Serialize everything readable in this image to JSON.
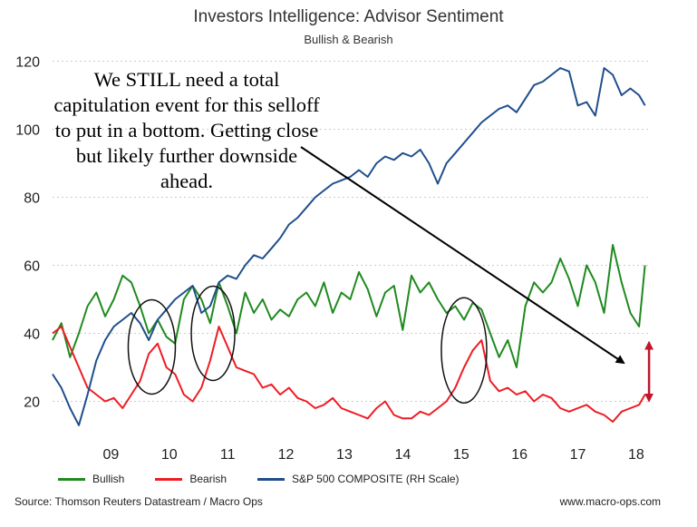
{
  "title": "Investors Intelligence: Advisor Sentiment",
  "subtitle": "Bullish & Bearish",
  "annotation": "We STILL need a total capitulation event for this selloff to put in a bottom. Getting close but likely further downside ahead.",
  "source": "Source: Thomson Reuters Datastream / Macro Ops",
  "website": "www.macro-ops.com",
  "colors": {
    "bullish": "#1f8a1f",
    "bearish": "#ee1c24",
    "sp500": "#1f4e8c",
    "arrow_red": "#c0152a"
  },
  "chart_data": {
    "type": "line",
    "title": "Investors Intelligence: Advisor Sentiment",
    "subtitle": "Bullish & Bearish",
    "xlabel": "",
    "ylabel": "",
    "xlim": [
      2008.5,
      2018.75
    ],
    "ylim": [
      10,
      122
    ],
    "yticks": [
      20,
      40,
      60,
      80,
      100,
      120
    ],
    "xticks": [
      {
        "value": 2009.5,
        "label": "09"
      },
      {
        "value": 2010.5,
        "label": "10"
      },
      {
        "value": 2011.5,
        "label": "11"
      },
      {
        "value": 2012.5,
        "label": "12"
      },
      {
        "value": 2013.5,
        "label": "13"
      },
      {
        "value": 2014.5,
        "label": "14"
      },
      {
        "value": 2015.5,
        "label": "15"
      },
      {
        "value": 2016.5,
        "label": "16"
      },
      {
        "value": 2017.5,
        "label": "17"
      },
      {
        "value": 2018.5,
        "label": "18"
      }
    ],
    "legend": [
      "Bullish",
      "Bearish",
      "S&P 500 COMPOSITE (RH Scale)"
    ],
    "series": [
      {
        "name": "Bullish",
        "x": [
          2008.5,
          2008.65,
          2008.8,
          2008.95,
          2009.1,
          2009.25,
          2009.4,
          2009.55,
          2009.7,
          2009.85,
          2010.0,
          2010.15,
          2010.3,
          2010.45,
          2010.6,
          2010.75,
          2010.9,
          2011.05,
          2011.2,
          2011.35,
          2011.5,
          2011.65,
          2011.8,
          2011.95,
          2012.1,
          2012.25,
          2012.4,
          2012.55,
          2012.7,
          2012.85,
          2013.0,
          2013.15,
          2013.3,
          2013.45,
          2013.6,
          2013.75,
          2013.9,
          2014.05,
          2014.2,
          2014.35,
          2014.5,
          2014.65,
          2014.8,
          2014.95,
          2015.1,
          2015.25,
          2015.4,
          2015.55,
          2015.7,
          2015.85,
          2016.0,
          2016.15,
          2016.3,
          2016.45,
          2016.6,
          2016.75,
          2016.9,
          2017.05,
          2017.2,
          2017.35,
          2017.5,
          2017.65,
          2017.8,
          2017.95,
          2018.1,
          2018.25,
          2018.4,
          2018.55,
          2018.65
        ],
        "values": [
          38,
          43,
          33,
          40,
          48,
          52,
          45,
          50,
          57,
          55,
          48,
          40,
          44,
          39,
          37,
          50,
          54,
          50,
          43,
          55,
          48,
          40,
          52,
          46,
          50,
          44,
          47,
          45,
          50,
          52,
          48,
          55,
          46,
          52,
          50,
          58,
          53,
          45,
          52,
          54,
          41,
          57,
          52,
          55,
          50,
          46,
          48,
          44,
          49,
          47,
          40,
          33,
          38,
          30,
          48,
          55,
          52,
          55,
          62,
          56,
          48,
          60,
          55,
          46,
          66,
          55,
          46,
          42,
          60
        ]
      },
      {
        "name": "Bearish",
        "x": [
          2008.5,
          2008.65,
          2008.8,
          2008.95,
          2009.1,
          2009.25,
          2009.4,
          2009.55,
          2009.7,
          2009.85,
          2010.0,
          2010.15,
          2010.3,
          2010.45,
          2010.6,
          2010.75,
          2010.9,
          2011.05,
          2011.2,
          2011.35,
          2011.5,
          2011.65,
          2011.8,
          2011.95,
          2012.1,
          2012.25,
          2012.4,
          2012.55,
          2012.7,
          2012.85,
          2013.0,
          2013.15,
          2013.3,
          2013.45,
          2013.6,
          2013.75,
          2013.9,
          2014.05,
          2014.2,
          2014.35,
          2014.5,
          2014.65,
          2014.8,
          2014.95,
          2015.1,
          2015.25,
          2015.4,
          2015.55,
          2015.7,
          2015.85,
          2016.0,
          2016.15,
          2016.3,
          2016.45,
          2016.6,
          2016.75,
          2016.9,
          2017.05,
          2017.2,
          2017.35,
          2017.5,
          2017.65,
          2017.8,
          2017.95,
          2018.1,
          2018.25,
          2018.4,
          2018.55,
          2018.65
        ],
        "values": [
          40,
          42,
          36,
          30,
          24,
          22,
          20,
          21,
          18,
          22,
          26,
          34,
          37,
          30,
          28,
          22,
          20,
          24,
          32,
          42,
          36,
          30,
          29,
          28,
          24,
          25,
          22,
          24,
          21,
          20,
          18,
          19,
          21,
          18,
          17,
          16,
          15,
          18,
          20,
          16,
          15,
          15,
          17,
          16,
          18,
          20,
          24,
          30,
          35,
          38,
          26,
          23,
          24,
          22,
          23,
          20,
          22,
          21,
          18,
          17,
          18,
          19,
          17,
          16,
          14,
          17,
          18,
          19,
          22
        ]
      },
      {
        "name": "S&P 500 COMPOSITE (RH Scale)",
        "x": [
          2008.5,
          2008.65,
          2008.8,
          2008.95,
          2009.1,
          2009.25,
          2009.4,
          2009.55,
          2009.7,
          2009.85,
          2010.0,
          2010.15,
          2010.3,
          2010.45,
          2010.6,
          2010.75,
          2010.9,
          2011.05,
          2011.2,
          2011.35,
          2011.5,
          2011.65,
          2011.8,
          2011.95,
          2012.1,
          2012.25,
          2012.4,
          2012.55,
          2012.7,
          2012.85,
          2013.0,
          2013.15,
          2013.3,
          2013.45,
          2013.6,
          2013.75,
          2013.9,
          2014.05,
          2014.2,
          2014.35,
          2014.5,
          2014.65,
          2014.8,
          2014.95,
          2015.1,
          2015.25,
          2015.4,
          2015.55,
          2015.7,
          2015.85,
          2016.0,
          2016.15,
          2016.3,
          2016.45,
          2016.6,
          2016.75,
          2016.9,
          2017.05,
          2017.2,
          2017.35,
          2017.5,
          2017.65,
          2017.8,
          2017.95,
          2018.1,
          2018.25,
          2018.4,
          2018.55,
          2018.65
        ],
        "values": [
          28,
          24,
          18,
          13,
          22,
          32,
          38,
          42,
          44,
          46,
          43,
          38,
          44,
          47,
          50,
          52,
          54,
          46,
          48,
          55,
          57,
          56,
          60,
          63,
          62,
          65,
          68,
          72,
          74,
          77,
          80,
          82,
          84,
          85,
          86,
          88,
          86,
          90,
          92,
          91,
          93,
          92,
          94,
          90,
          84,
          90,
          93,
          96,
          99,
          102,
          104,
          106,
          107,
          105,
          109,
          113,
          114,
          116,
          118,
          117,
          107,
          108,
          104,
          118,
          116,
          110,
          112,
          110,
          107
        ]
      }
    ],
    "annotations": [
      "circle highlight ~2010",
      "circle highlight ~2011",
      "circle highlight ~2015",
      "black arrow to late 2018",
      "red double arrow spread late 2018"
    ]
  }
}
